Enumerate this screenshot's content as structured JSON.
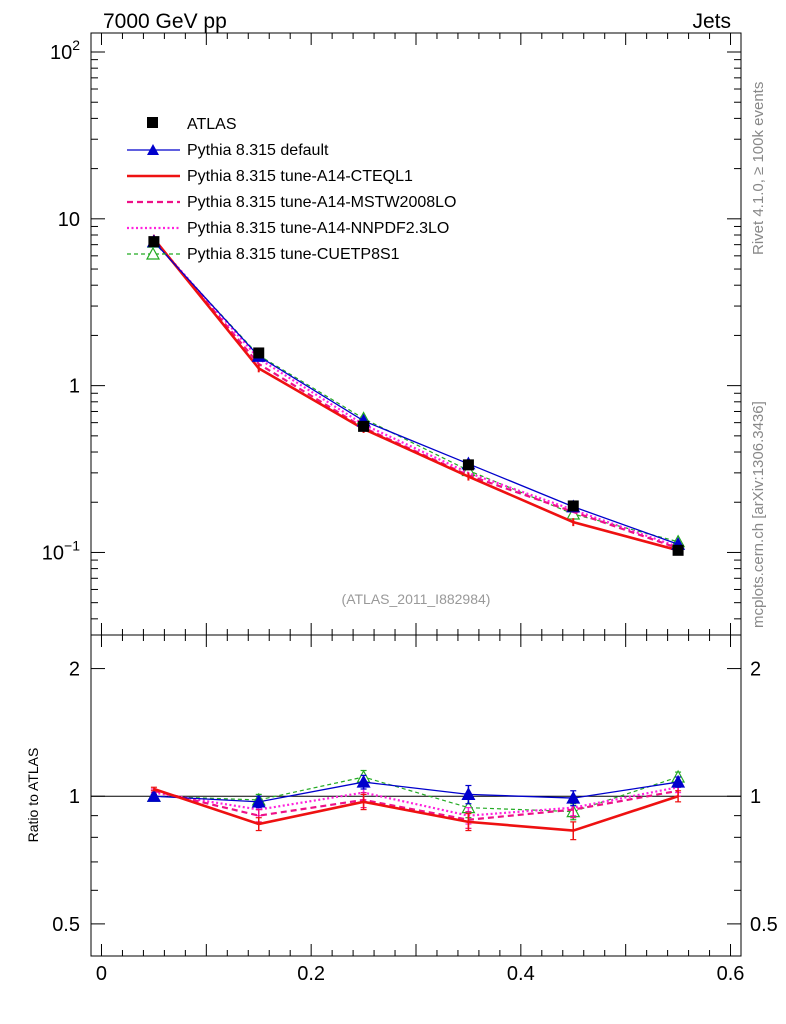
{
  "header": {
    "left_title": "7000 GeV pp",
    "right_title": "Jets"
  },
  "side_labels": {
    "rivet": "Rivet 4.1.0, ≥ 100k events",
    "source": "mcplots.cern.ch [arXiv:1306.3436]"
  },
  "colors": {
    "atlas": "#000000",
    "default": "#0000cc",
    "cteql1": "#ee1111",
    "mstw": "#ee1188",
    "nnpdf": "#ff22dd",
    "cuetp": "#22aa22"
  },
  "chart_data": [
    {
      "type": "line",
      "panel": "main",
      "annotation": "(ATLAS_2011_I882984)",
      "yscale": "log",
      "ylim": [
        0.032,
        130
      ],
      "xlim": [
        -0.01,
        0.61
      ],
      "x": [
        0.05,
        0.15,
        0.25,
        0.35,
        0.45,
        0.55
      ],
      "y_ticks": [
        {
          "value": 0.1,
          "base": "10",
          "exp": "−1"
        },
        {
          "value": 1,
          "base": "1",
          "exp": ""
        },
        {
          "value": 10,
          "base": "10",
          "exp": ""
        },
        {
          "value": 100,
          "base": "10",
          "exp": "2"
        }
      ],
      "legend_position": "top-left",
      "series": [
        {
          "key": "atlas",
          "name": "ATLAS",
          "values": [
            7.3,
            1.57,
            0.57,
            0.335,
            0.19,
            0.103
          ],
          "style": "marker",
          "marker": "square"
        },
        {
          "key": "default",
          "name": "Pythia 8.315 default",
          "values": [
            7.3,
            1.5,
            0.615,
            0.34,
            0.188,
            0.112
          ],
          "style": "solid",
          "marker": "triangle"
        },
        {
          "key": "cteql1",
          "name": "Pythia 8.315 tune-A14-CTEQL1",
          "values": [
            7.6,
            1.27,
            0.55,
            0.285,
            0.152,
            0.103
          ],
          "style": "solid-thick",
          "marker": "none"
        },
        {
          "key": "mstw",
          "name": "Pythia 8.315 tune-A14-MSTW2008LO",
          "values": [
            7.5,
            1.35,
            0.56,
            0.29,
            0.175,
            0.106
          ],
          "style": "dashed",
          "marker": "none"
        },
        {
          "key": "nnpdf",
          "name": "Pythia 8.315 tune-A14-NNPDF2.3LO",
          "values": [
            7.45,
            1.45,
            0.585,
            0.3,
            0.18,
            0.108
          ],
          "style": "dotted",
          "marker": "none"
        },
        {
          "key": "cuetp",
          "name": "Pythia 8.315 tune-CUETP8S1",
          "values": [
            7.25,
            1.52,
            0.635,
            0.31,
            0.17,
            0.116
          ],
          "style": "dashed-thin",
          "marker": "open-triangle"
        }
      ]
    },
    {
      "type": "line",
      "panel": "ratio",
      "ylabel": "Ratio to ATLAS",
      "yscale": "log",
      "ylim": [
        0.42,
        2.4
      ],
      "xlim": [
        -0.01,
        0.61
      ],
      "x": [
        0.05,
        0.15,
        0.25,
        0.35,
        0.45,
        0.55
      ],
      "y_ticks": [
        {
          "value": 0.5,
          "label": "0.5"
        },
        {
          "value": 1,
          "label": "1"
        },
        {
          "value": 2,
          "label": "2"
        }
      ],
      "x_ticks": [
        {
          "value": 0,
          "label": "0"
        },
        {
          "value": 0.2,
          "label": "0.2"
        },
        {
          "value": 0.4,
          "label": "0.4"
        },
        {
          "value": 0.6,
          "label": "0.6"
        }
      ],
      "series": [
        {
          "key": "default",
          "values": [
            1.0,
            0.97,
            1.08,
            1.01,
            0.99,
            1.08
          ],
          "errors": [
            0.01,
            0.03,
            0.04,
            0.05,
            0.04,
            0.03
          ]
        },
        {
          "key": "cteql1",
          "values": [
            1.04,
            0.86,
            0.97,
            0.87,
            0.83,
            1.0
          ],
          "errors": [
            0.01,
            0.03,
            0.04,
            0.04,
            0.04,
            0.03
          ]
        },
        {
          "key": "mstw",
          "values": [
            1.03,
            0.9,
            0.98,
            0.88,
            0.93,
            1.03
          ],
          "errors": [
            0.01,
            0.03,
            0.04,
            0.04,
            0.04,
            0.03
          ]
        },
        {
          "key": "nnpdf",
          "values": [
            1.02,
            0.93,
            1.02,
            0.9,
            0.94,
            1.05
          ],
          "errors": [
            0.01,
            0.03,
            0.04,
            0.04,
            0.04,
            0.03
          ]
        },
        {
          "key": "cuetp",
          "values": [
            1.0,
            0.98,
            1.11,
            0.94,
            0.92,
            1.11
          ],
          "errors": [
            0.01,
            0.03,
            0.04,
            0.05,
            0.04,
            0.03
          ]
        }
      ]
    }
  ]
}
